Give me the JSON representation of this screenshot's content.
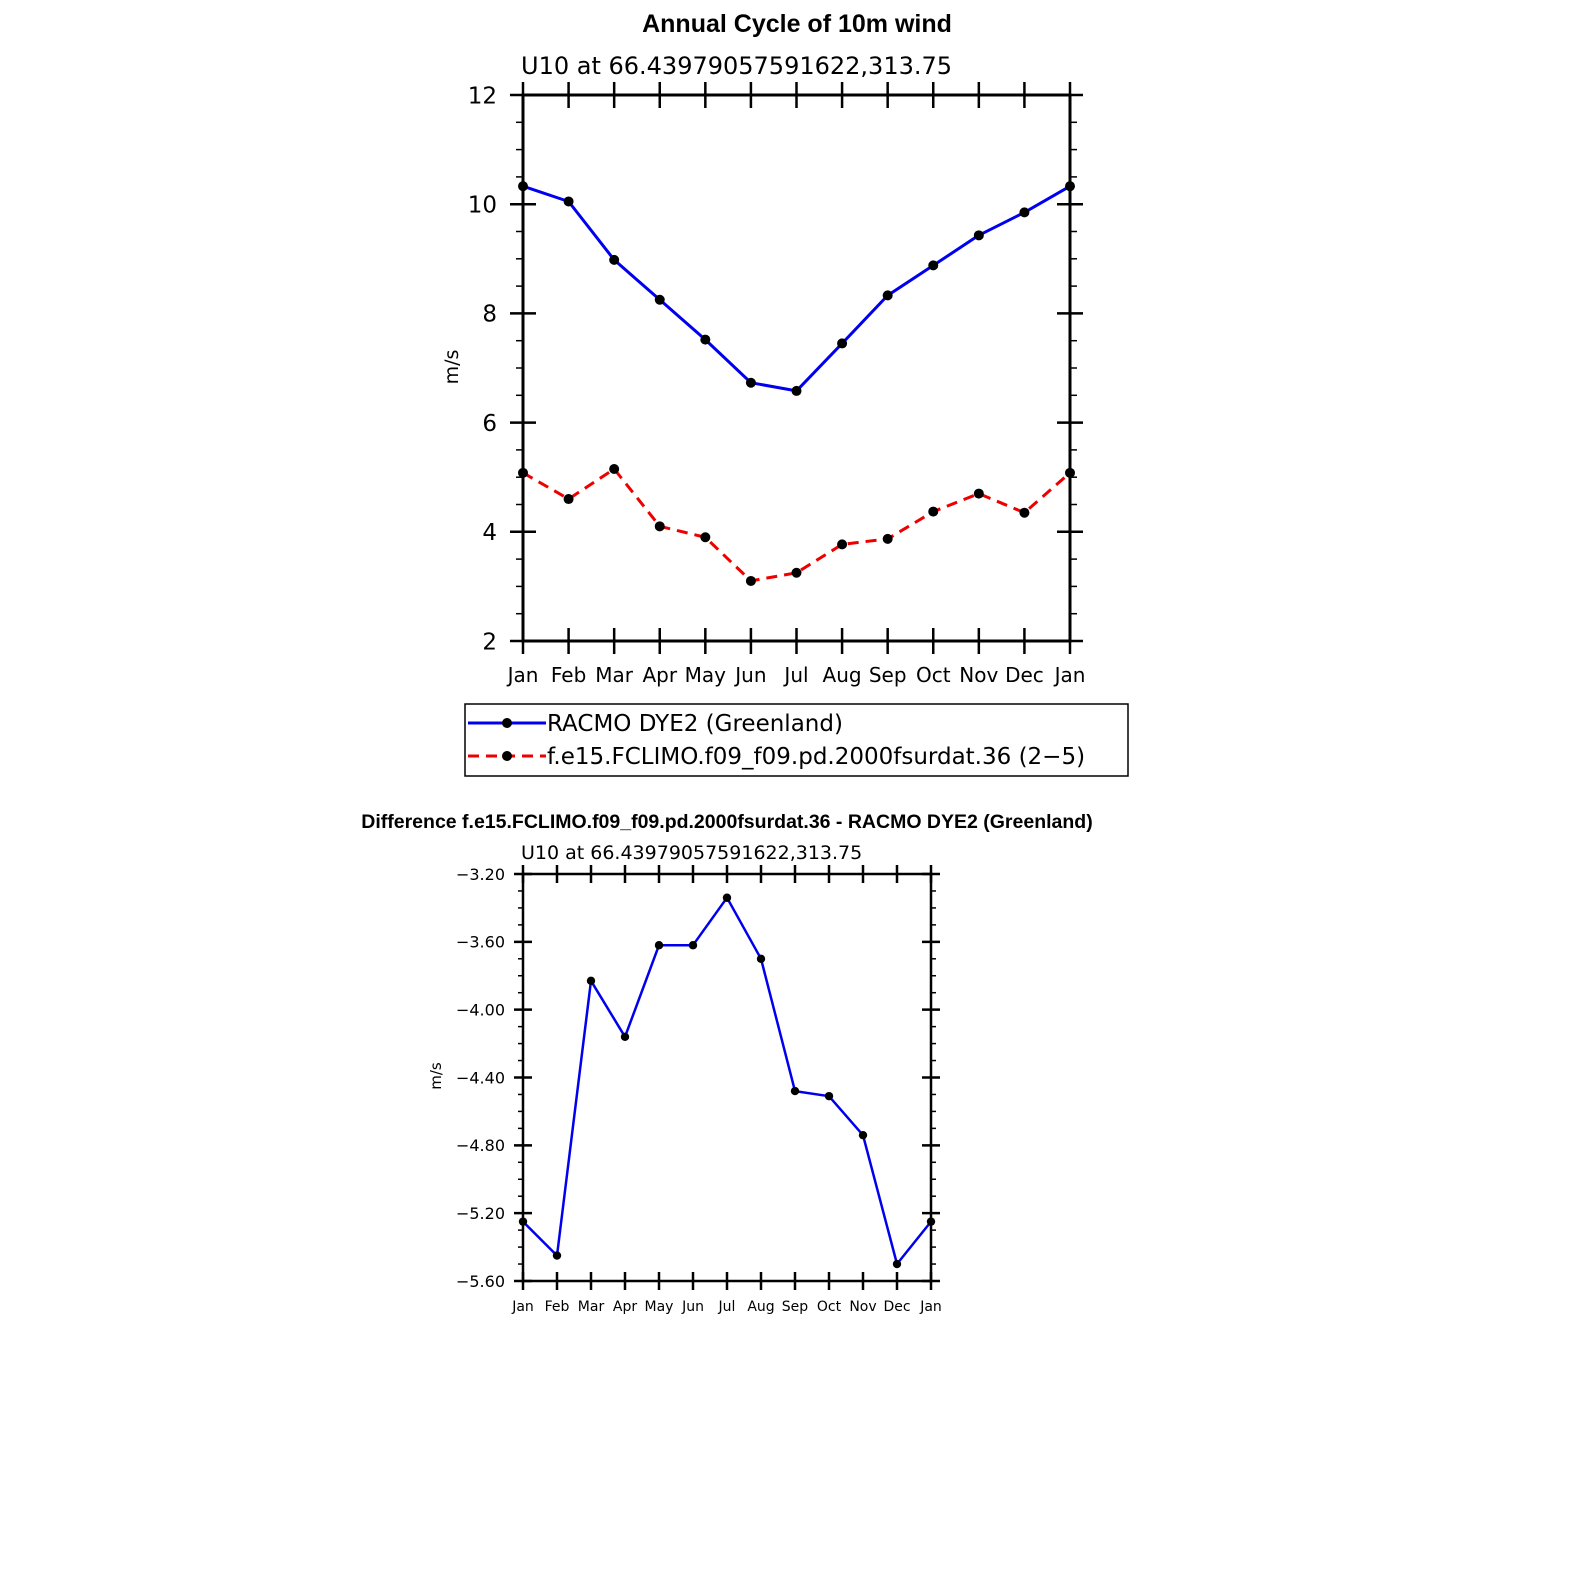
{
  "chart_data": [
    {
      "type": "line",
      "title": "Annual Cycle of 10m wind",
      "subtitle": "U10 at 66.43979057591622,313.75",
      "xlabel": "",
      "ylabel": "m/s",
      "categories": [
        "Jan",
        "Feb",
        "Mar",
        "Apr",
        "May",
        "Jun",
        "Jul",
        "Aug",
        "Sep",
        "Oct",
        "Nov",
        "Dec",
        "Jan"
      ],
      "ylim": [
        2,
        12
      ],
      "yticks": [
        "2",
        "4",
        "6",
        "8",
        "10",
        "12"
      ],
      "grid": false,
      "legend_position": "bottom",
      "series": [
        {
          "name": "RACMO DYE2 (Greenland)",
          "color": "#0000ee",
          "style": "solid",
          "values": [
            10.33,
            10.05,
            8.98,
            8.25,
            7.52,
            6.73,
            6.58,
            7.45,
            8.33,
            8.88,
            9.43,
            9.85,
            10.33
          ]
        },
        {
          "name": "f.e15.FCLIMO.f09_f09.pd.2000fsurdat.36 (2−5)",
          "color": "#ee0000",
          "style": "dashed",
          "values": [
            5.08,
            4.6,
            5.15,
            4.1,
            3.9,
            3.1,
            3.25,
            3.77,
            3.87,
            4.37,
            4.7,
            4.35,
            5.08
          ]
        }
      ]
    },
    {
      "type": "line",
      "title": "Difference f.e15.FCLIMO.f09_f09.pd.2000fsurdat.36 - RACMO DYE2 (Greenland)",
      "subtitle": "U10 at 66.43979057591622,313.75",
      "xlabel": "",
      "ylabel": "m/s",
      "categories": [
        "Jan",
        "Feb",
        "Mar",
        "Apr",
        "May",
        "Jun",
        "Jul",
        "Aug",
        "Sep",
        "Oct",
        "Nov",
        "Dec",
        "Jan"
      ],
      "ylim": [
        -5.6,
        -3.2
      ],
      "yticks": [
        "−5.60",
        "−5.20",
        "−4.80",
        "−4.40",
        "−4.00",
        "−3.60",
        "−3.20"
      ],
      "grid": false,
      "series": [
        {
          "color": "#0000ee",
          "style": "solid",
          "values": [
            -5.25,
            -5.45,
            -3.83,
            -4.16,
            -3.62,
            -3.62,
            -3.34,
            -3.7,
            -4.48,
            -4.51,
            -4.74,
            -5.5,
            -5.25
          ]
        }
      ]
    }
  ]
}
